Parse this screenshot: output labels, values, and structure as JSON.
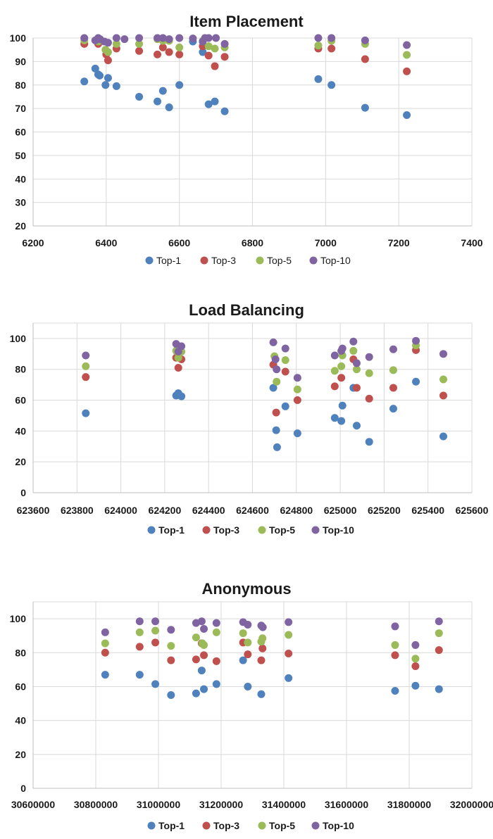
{
  "colors": {
    "Top-1": "#4F81BD",
    "Top-3": "#C0504D",
    "Top-5": "#9BBB59",
    "Top-10": "#8064A2",
    "grid": "#d9d9d9"
  },
  "chart_data": [
    {
      "type": "scatter",
      "title": "Item Placement",
      "xlim": [
        6200,
        7400
      ],
      "ylim": [
        20,
        100
      ],
      "xticks": [
        6200,
        6400,
        6600,
        6800,
        7000,
        7200,
        7400
      ],
      "yticks": [
        20,
        30,
        40,
        50,
        60,
        70,
        80,
        90,
        100
      ],
      "legend_bold": false,
      "legend": [
        "Top-1",
        "Top-3",
        "Top-5",
        "Top-10"
      ],
      "series": [
        {
          "name": "Top-1",
          "x": [
            6340,
            6370,
            6378,
            6382,
            6398,
            6405,
            6428,
            6490,
            6540,
            6555,
            6572,
            6600,
            6637,
            6664,
            6680,
            6697,
            6724,
            6980,
            7016,
            7108,
            7222
          ],
          "y": [
            81.5,
            87,
            84.5,
            84,
            80,
            83,
            79.5,
            75,
            73,
            77.5,
            70.5,
            80,
            98.5,
            94,
            71.8,
            73,
            68.8,
            82.5,
            80,
            70.3,
            67.2
          ]
        },
        {
          "name": "Top-3",
          "x": [
            6340,
            6378,
            6400,
            6405,
            6428,
            6490,
            6540,
            6555,
            6572,
            6600,
            6664,
            6680,
            6697,
            6724,
            6980,
            7016,
            7108,
            7222
          ],
          "y": [
            97.5,
            97.5,
            93,
            90.5,
            95.5,
            94.5,
            93,
            96,
            94,
            93,
            96.5,
            92.5,
            88,
            92,
            95.5,
            95.5,
            91,
            85.8
          ]
        },
        {
          "name": "Top-5",
          "x": [
            6340,
            6378,
            6398,
            6405,
            6428,
            6490,
            6540,
            6555,
            6572,
            6600,
            6664,
            6680,
            6697,
            6724,
            6980,
            7016,
            7108,
            7222
          ],
          "y": [
            99,
            98.5,
            95,
            94,
            97.5,
            97.5,
            99.5,
            98.8,
            98.8,
            96,
            98.8,
            96.5,
            95.5,
            96,
            96.8,
            98.8,
            97.5,
            92.8
          ]
        },
        {
          "name": "Top-10",
          "x": [
            6340,
            6370,
            6378,
            6383,
            6395,
            6405,
            6428,
            6450,
            6490,
            6540,
            6555,
            6572,
            6600,
            6637,
            6664,
            6670,
            6680,
            6700,
            6724,
            6980,
            7016,
            7108,
            7222
          ],
          "y": [
            100,
            99,
            100,
            99.5,
            98.5,
            98,
            100,
            99.5,
            100,
            100,
            100,
            99.5,
            100,
            99.8,
            98.5,
            100,
            100,
            100,
            97.5,
            100,
            100,
            99,
            97
          ]
        }
      ]
    },
    {
      "type": "scatter",
      "title": "Load Balancing",
      "xlim": [
        623600,
        625600
      ],
      "ylim": [
        0,
        110
      ],
      "xticks": [
        623600,
        623800,
        624000,
        624200,
        624400,
        624600,
        624800,
        625000,
        625200,
        625400,
        625600
      ],
      "yticks": [
        0,
        20,
        40,
        60,
        80,
        100
      ],
      "legend_bold": true,
      "legend": [
        "Top-1",
        "Top-3",
        "Top-5",
        "Top-10"
      ],
      "series": [
        {
          "name": "Top-1",
          "x": [
            623840,
            624252,
            624262,
            624276,
            624695,
            624708,
            624712,
            624750,
            624805,
            624975,
            625005,
            625010,
            625060,
            625075,
            625132,
            625242,
            625345,
            625470
          ],
          "y": [
            51.5,
            63,
            64.5,
            62.5,
            68,
            40.5,
            29.5,
            56,
            38.5,
            48.5,
            46.5,
            56.5,
            68,
            43.5,
            33,
            54.5,
            72,
            36.5
          ]
        },
        {
          "name": "Top-3",
          "x": [
            623840,
            624252,
            624262,
            624276,
            624695,
            624708,
            624750,
            624805,
            624975,
            625005,
            625060,
            625075,
            625132,
            625242,
            625345,
            625470
          ],
          "y": [
            75,
            87.5,
            81,
            86.5,
            83,
            52,
            78.5,
            60,
            69,
            74.5,
            86.5,
            68,
            61,
            68,
            92.5,
            63
          ],
          "note": ""
        },
        {
          "name": "Top-5",
          "x": [
            623840,
            624252,
            624262,
            624276,
            624700,
            624710,
            624750,
            624805,
            624975,
            625005,
            625010,
            625060,
            625075,
            625132,
            625242,
            625345,
            625470
          ],
          "y": [
            82,
            92,
            87.5,
            91.5,
            88.5,
            72,
            86,
            67,
            79,
            82,
            89,
            92,
            80,
            77.5,
            79.5,
            95.5,
            73.5
          ]
        },
        {
          "name": "Top-10",
          "x": [
            623840,
            624252,
            624262,
            624276,
            624695,
            624705,
            624710,
            624750,
            624805,
            624975,
            625005,
            625010,
            625060,
            625075,
            625132,
            625242,
            625345,
            625470
          ],
          "y": [
            89,
            96.5,
            91.5,
            95,
            97.5,
            86.5,
            80,
            93.5,
            74.5,
            89,
            92,
            93.5,
            98,
            84,
            88,
            93,
            98.5,
            90
          ]
        }
      ]
    },
    {
      "type": "scatter",
      "title": "Anonymous",
      "xlim": [
        30600000,
        32000000
      ],
      "ylim": [
        0,
        110
      ],
      "xticks": [
        30600000,
        30800000,
        31000000,
        31200000,
        31400000,
        31600000,
        31800000,
        32000000
      ],
      "yticks": [
        0,
        20,
        40,
        60,
        80,
        100
      ],
      "legend_bold": true,
      "legend": [
        "Top-1",
        "Top-3",
        "Top-5",
        "Top-10"
      ],
      "series": [
        {
          "name": "Top-1",
          "x": [
            30830000,
            30940000,
            30990000,
            31040000,
            31120000,
            31138000,
            31145000,
            31185000,
            31270000,
            31285000,
            31328000,
            31415000,
            31755000,
            31820000,
            31895000
          ],
          "y": [
            67,
            67,
            61.5,
            55,
            56,
            69.5,
            58.5,
            61.5,
            75.5,
            60,
            55.5,
            65,
            57.5,
            60.5,
            58.5
          ]
        },
        {
          "name": "Top-3",
          "x": [
            30830000,
            30940000,
            30990000,
            31040000,
            31120000,
            31138000,
            31145000,
            31185000,
            31270000,
            31285000,
            31328000,
            31332000,
            31415000,
            31755000,
            31820000,
            31895000
          ],
          "y": [
            80,
            83.5,
            86,
            75.5,
            76,
            85.5,
            78.5,
            75,
            86,
            79,
            75.5,
            82.5,
            79.5,
            78.5,
            72,
            81.5
          ]
        },
        {
          "name": "Top-5",
          "x": [
            30830000,
            30940000,
            30990000,
            31040000,
            31120000,
            31140000,
            31145000,
            31185000,
            31270000,
            31285000,
            31328000,
            31332000,
            31415000,
            31755000,
            31820000,
            31895000
          ],
          "y": [
            85.5,
            92,
            93,
            84,
            89,
            85.5,
            84.5,
            92,
            91.5,
            86,
            86.5,
            88.5,
            90.5,
            84.5,
            76.5,
            91.5
          ]
        },
        {
          "name": "Top-10",
          "x": [
            30830000,
            30940000,
            30990000,
            31040000,
            31120000,
            31138000,
            31145000,
            31185000,
            31270000,
            31285000,
            31328000,
            31333000,
            31415000,
            31755000,
            31820000,
            31895000
          ],
          "y": [
            92,
            98.5,
            98.5,
            93.5,
            97.5,
            98.5,
            94,
            97.5,
            98,
            96.5,
            96,
            95,
            98,
            95.5,
            84.5,
            98.5
          ]
        }
      ]
    }
  ]
}
